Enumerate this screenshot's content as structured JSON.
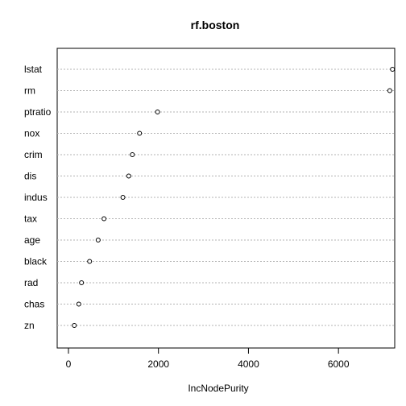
{
  "chart_data": {
    "type": "dotchart",
    "title": "rf.boston",
    "xlabel": "IncNodePurity",
    "ylabel": "",
    "xlim": [
      -250,
      7250
    ],
    "xticks": [
      0,
      2000,
      4000,
      6000
    ],
    "xtick_labels": [
      "0",
      "2000",
      "4000",
      "6000"
    ],
    "grid": "dotted horizontal lines",
    "categories": [
      "lstat",
      "rm",
      "ptratio",
      "nox",
      "crim",
      "dis",
      "indus",
      "tax",
      "age",
      "black",
      "rad",
      "chas",
      "zn"
    ],
    "values": [
      7200,
      7140,
      1980,
      1580,
      1420,
      1340,
      1210,
      790,
      660,
      470,
      290,
      230,
      130
    ]
  }
}
